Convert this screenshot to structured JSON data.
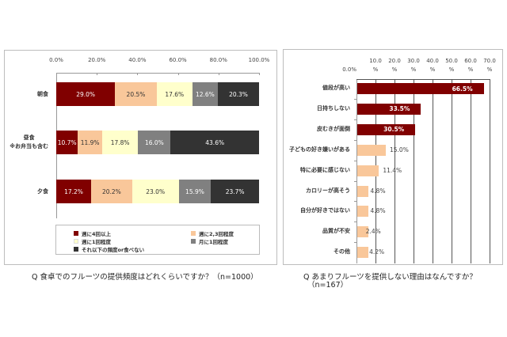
{
  "chart_data": [
    {
      "type": "bar",
      "orientation": "horizontal",
      "stacked": true,
      "title": "Q 食卓でのフルーツの提供頻度はどれくらいですか？（n=1000）",
      "xlabel": "",
      "ylabel": "",
      "xlim": [
        0,
        100
      ],
      "x_ticks": [
        "0.0%",
        "20.0%",
        "40.0%",
        "60.0%",
        "80.0%",
        "100.0%"
      ],
      "categories": [
        "朝食",
        "昼食\n※お弁当も含む",
        "夕食"
      ],
      "category_lines": [
        [
          "朝食"
        ],
        [
          "昼食",
          "※お弁当も含む"
        ],
        [
          "夕食"
        ]
      ],
      "grid": false,
      "legend_position": "bottom",
      "series": [
        {
          "name": "週に4回以上",
          "color": "#800000",
          "text_color": "#ffffff",
          "values": [
            29.0,
            10.7,
            17.2
          ],
          "labels": [
            "29.0%",
            "10.7%",
            "17.2%"
          ]
        },
        {
          "name": "週に2,3回程度",
          "color": "#f9c79a",
          "text_color": "#333333",
          "values": [
            20.5,
            11.9,
            20.2
          ],
          "labels": [
            "20.5%",
            "11.9%",
            "20.2%"
          ]
        },
        {
          "name": "週に1回程度",
          "color": "#ffffcc",
          "text_color": "#333333",
          "values": [
            17.6,
            17.8,
            23.0
          ],
          "labels": [
            "17.6%",
            "17.8%",
            "23.0%"
          ]
        },
        {
          "name": "月に1回程度",
          "color": "#808080",
          "text_color": "#ffffff",
          "values": [
            12.6,
            16.0,
            15.9
          ],
          "labels": [
            "12.6%",
            "16.0%",
            "15.9%"
          ]
        },
        {
          "name": "それ以下の頻度or食べない",
          "color": "#333333",
          "text_color": "#ffffff",
          "values": [
            20.3,
            43.6,
            23.7
          ],
          "labels": [
            "20.3%",
            "43.6%",
            "23.7%"
          ]
        }
      ]
    },
    {
      "type": "bar",
      "orientation": "horizontal",
      "title": "Q あまりフルーツを提供しない理由はなんですか？（n=167）",
      "caption_lines": [
        "Q あまりフルーツを提供しない理由はなんですか？",
        "（n=167）"
      ],
      "xlabel": "",
      "ylabel": "",
      "xlim": [
        0,
        70
      ],
      "x_ticks": [
        {
          "top": "",
          "bottom": "0.0%"
        },
        {
          "top": "10.0",
          "bottom": "%"
        },
        {
          "top": "20.0",
          "bottom": "%"
        },
        {
          "top": "30.0",
          "bottom": "%"
        },
        {
          "top": "40.0",
          "bottom": "%"
        },
        {
          "top": "50.0",
          "bottom": "%"
        },
        {
          "top": "60.0",
          "bottom": "%"
        },
        {
          "top": "70.0",
          "bottom": "%"
        }
      ],
      "grid": true,
      "categories": [
        "値段が高い",
        "日持ちしない",
        "皮むきが面倒",
        "子どもの好き嫌いがある",
        "特に必要に感じない",
        "カロリーが高そう",
        "自分が好きではない",
        "品質が不安",
        "その他"
      ],
      "values": [
        66.5,
        33.5,
        30.5,
        15.0,
        11.4,
        4.8,
        4.8,
        2.4,
        4.2
      ],
      "labels": [
        "66.5%",
        "33.5%",
        "30.5%",
        "15.0%",
        "11.4%",
        "4.8%",
        "4.8%",
        "2.4%",
        "4.2%"
      ],
      "highlight_count": 3,
      "colors": {
        "highlight": "#800000",
        "normal": "#f9c79a",
        "highlight_text": "#ffffff",
        "normal_text": "#444444"
      }
    }
  ],
  "left_chart": {
    "caption": "Q 食卓でのフルーツの提供頻度はどれくらいですか？（n=1000）"
  },
  "right_chart": {
    "caption_line1": "Q あまりフルーツを提供しない理由はなんですか？",
    "caption_line2": "（n=167）"
  }
}
